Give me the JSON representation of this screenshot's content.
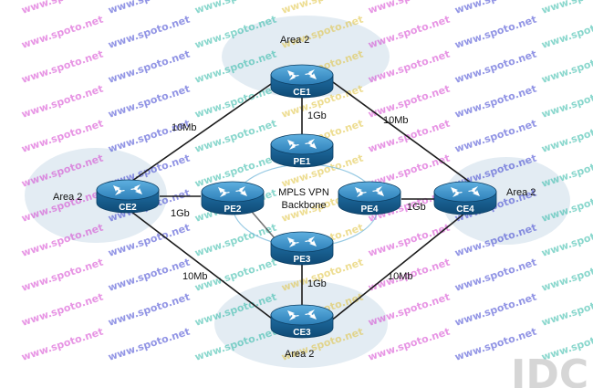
{
  "diagram": {
    "areas": [
      {
        "id": "top",
        "label": "Area 2"
      },
      {
        "id": "left",
        "label": "Area 2"
      },
      {
        "id": "right",
        "label": "Area 2"
      },
      {
        "id": "bottom",
        "label": "Area 2"
      }
    ],
    "backbone": {
      "line1": "MPLS VPN",
      "line2": "Backbone"
    },
    "routers": [
      {
        "id": "ce1",
        "label": "CE1"
      },
      {
        "id": "ce2",
        "label": "CE2"
      },
      {
        "id": "ce3",
        "label": "CE3"
      },
      {
        "id": "ce4",
        "label": "CE4"
      },
      {
        "id": "pe1",
        "label": "PE1"
      },
      {
        "id": "pe2",
        "label": "PE2"
      },
      {
        "id": "pe3",
        "label": "PE3"
      },
      {
        "id": "pe4",
        "label": "PE4"
      }
    ],
    "links": [
      {
        "id": "ce1-ce2",
        "label": "10Mb"
      },
      {
        "id": "ce1-ce4",
        "label": "10Mb"
      },
      {
        "id": "ce2-ce3",
        "label": "10Mb"
      },
      {
        "id": "ce3-ce4",
        "label": "10Mb"
      },
      {
        "id": "ce1-pe1",
        "label": "1Gb"
      },
      {
        "id": "ce2-pe2",
        "label": "1Gb"
      },
      {
        "id": "pe4-ce4",
        "label": "1Gb"
      },
      {
        "id": "pe3-ce3",
        "label": "1Gb"
      }
    ],
    "watermark": "www.spoto.net",
    "colors": {
      "router_top": "#3a8fc8",
      "router_side": "#155a8a",
      "area_cloud": "#dfe9f1",
      "watermark_pink": "#d43fcf",
      "watermark_blue": "#3a3fd0",
      "watermark_teal": "#2bb8a5",
      "watermark_yellow": "#e0c23a"
    }
  }
}
